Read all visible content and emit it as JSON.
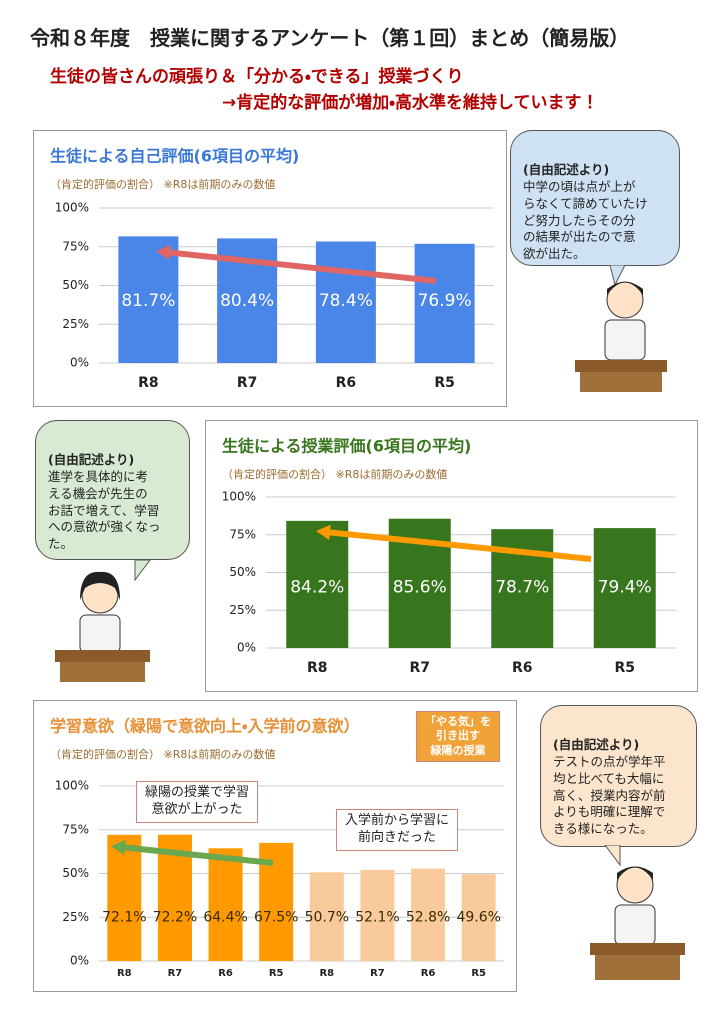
{
  "header": {
    "title": "令和８年度　授業に関するアンケート（第１回）まとめ（簡易版）",
    "subtitle_lines": [
      "生徒の皆さんの頑張り＆「分かる・できる」授業づくり",
      "→肯定的な評価が増加・高水準を維持しています！"
    ]
  },
  "chart_data": [
    {
      "type": "bar",
      "title": "生徒による自己評価(6項目の平均)",
      "subtitle": "（肯定的評価の割合） ※R8は前期のみの数値",
      "categories": [
        "R8",
        "R7",
        "R6",
        "R5"
      ],
      "values": [
        81.7,
        80.4,
        78.4,
        76.9
      ],
      "value_labels": [
        "81.7%",
        "80.4%",
        "78.4%",
        "76.9%"
      ],
      "color": "#4a86e8",
      "ylim": [
        0,
        100
      ],
      "yticks": [
        {
          "value": 0,
          "label": "0%"
        },
        {
          "value": 25,
          "label": "25%"
        },
        {
          "value": 50,
          "label": "50%"
        },
        {
          "value": 75,
          "label": "75%"
        },
        {
          "value": 100,
          "label": "100%"
        }
      ],
      "grid": true
    },
    {
      "type": "bar",
      "title": "生徒による授業評価(6項目の平均)",
      "subtitle": "（肯定的評価の割合） ※R8は前期のみの数値",
      "categories": [
        "R8",
        "R7",
        "R6",
        "R5"
      ],
      "values": [
        84.2,
        85.6,
        78.7,
        79.4
      ],
      "value_labels": [
        "84.2%",
        "85.6%",
        "78.7%",
        "79.4%"
      ],
      "color": "#38761d",
      "ylim": [
        0,
        100
      ],
      "yticks": [
        {
          "value": 0,
          "label": "0%"
        },
        {
          "value": 25,
          "label": "25%"
        },
        {
          "value": 50,
          "label": "50%"
        },
        {
          "value": 75,
          "label": "75%"
        },
        {
          "value": 100,
          "label": "100%"
        }
      ],
      "grid": true
    },
    {
      "type": "bar",
      "title": "学習意欲（緑陽で意欲向上・入学前の意欲）",
      "subtitle": "（肯定的評価の割合） ※R8は前期のみの数値",
      "categories": [
        "R8",
        "R7",
        "R6",
        "R5",
        "R8",
        "R7",
        "R6",
        "R5"
      ],
      "values": [
        72.1,
        72.2,
        64.4,
        67.5,
        50.7,
        52.1,
        52.8,
        49.6
      ],
      "value_labels": [
        "72.1%",
        "72.2%",
        "64.4%",
        "67.5%",
        "50.7%",
        "52.1%",
        "52.8%",
        "49.6%"
      ],
      "colors": [
        "#ff9900",
        "#ff9900",
        "#ff9900",
        "#ff9900",
        "#f9cb9c",
        "#f9cb9c",
        "#f9cb9c",
        "#f9cb9c"
      ],
      "ylim": [
        0,
        100
      ],
      "yticks": [
        {
          "value": 0,
          "label": "0%"
        },
        {
          "value": 25,
          "label": "25%"
        },
        {
          "value": 50,
          "label": "50%"
        },
        {
          "value": 75,
          "label": "75%"
        },
        {
          "value": 100,
          "label": "100%"
        }
      ],
      "grid": true,
      "annotations": [
        "緑陽の授業で学習\n意欲が上がった",
        "入学前から学習に\n前向きだった",
        "「やる気」を\n引き出す\n緑陽の授業"
      ]
    }
  ],
  "bubbles": [
    {
      "heading": "(自由記述より)",
      "text": "中学の頃は点が上が\nらなくて諦めていたけ\nど努力したらその分\nの結果が出たので意\n欲が出た。"
    },
    {
      "heading": "(自由記述より)",
      "text": "進学を具体的に考\nえる機会が先生の\nお話で増えて、学習\nへの意欲が強くなっ\nた。"
    },
    {
      "heading": "(自由記述より)",
      "text": "テストの点が学年平\n均と比べても大幅に\n高く、授業内容が前\nよりも明確に理解で\nきる様になった。"
    }
  ]
}
